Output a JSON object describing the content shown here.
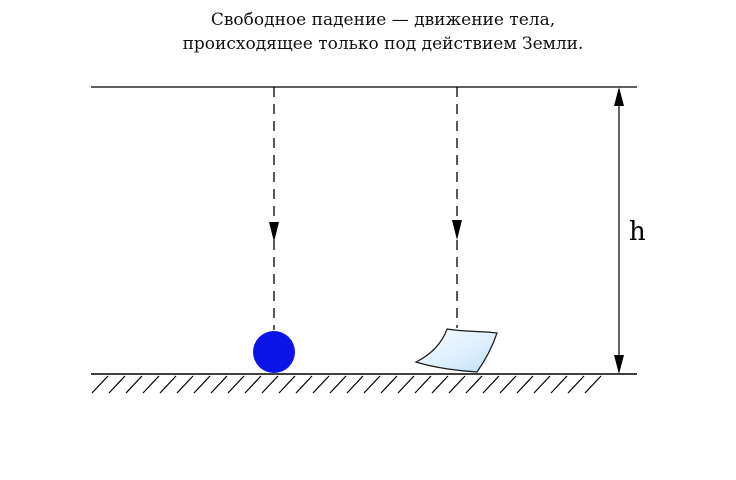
{
  "caption": {
    "line1": "Свободное падение — движение тела,",
    "line2": "происходящее только под действием Земли."
  },
  "height_label": "h",
  "colors": {
    "line": "#000000",
    "ball": "#0a14e6",
    "paper_fill": "#dcefff",
    "paper_stroke": "#1a1a1a"
  },
  "objects": [
    "ball",
    "paper-sheet"
  ]
}
